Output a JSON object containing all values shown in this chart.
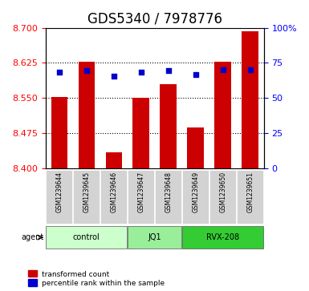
{
  "title": "GDS5340 / 7978776",
  "samples": [
    "GSM1239644",
    "GSM1239645",
    "GSM1239646",
    "GSM1239647",
    "GSM1239648",
    "GSM1239649",
    "GSM1239650",
    "GSM1239651"
  ],
  "bar_values": [
    8.553,
    8.628,
    8.435,
    8.55,
    8.58,
    8.487,
    8.628,
    8.692
  ],
  "dot_values": [
    8.605,
    8.608,
    8.597,
    8.605,
    8.608,
    8.6,
    8.61,
    8.61
  ],
  "bar_color": "#cc0000",
  "dot_color": "#0000cc",
  "ylim_left": [
    8.4,
    8.7
  ],
  "yticks_left": [
    8.4,
    8.475,
    8.55,
    8.625,
    8.7
  ],
  "ylim_right": [
    0,
    100
  ],
  "yticks_right": [
    0,
    25,
    50,
    75,
    100
  ],
  "ytick_labels_right": [
    "0",
    "25",
    "50",
    "75",
    "100%"
  ],
  "bar_width": 0.6,
  "groups": [
    {
      "label": "control",
      "samples": [
        0,
        1,
        2
      ],
      "color": "#ccffcc"
    },
    {
      "label": "JQ1",
      "samples": [
        3,
        4
      ],
      "color": "#99ee99"
    },
    {
      "label": "RVX-208",
      "samples": [
        5,
        6,
        7
      ],
      "color": "#33cc33"
    }
  ],
  "agent_label": "agent",
  "legend_items": [
    {
      "color": "#cc0000",
      "label": "transformed count"
    },
    {
      "color": "#0000cc",
      "label": "percentile rank within the sample"
    }
  ],
  "title_fontsize": 12,
  "tick_fontsize": 8,
  "bar_bottom": 8.4,
  "plot_bg": "#ffffff",
  "grid_color": "#000000",
  "sample_bg": "#d3d3d3"
}
